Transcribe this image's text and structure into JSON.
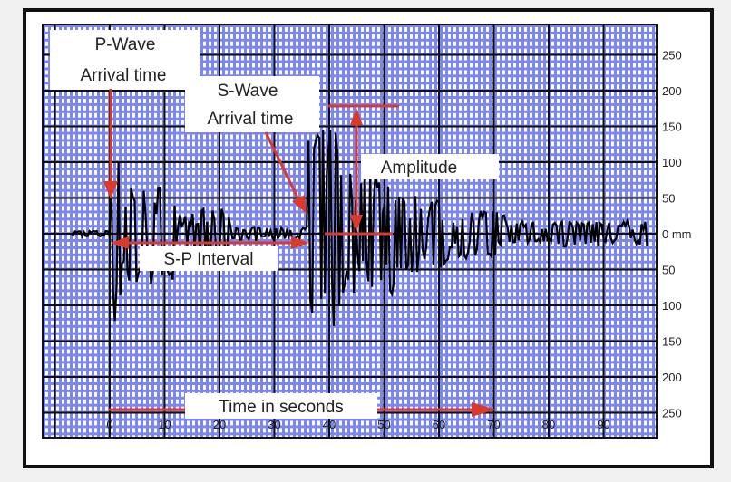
{
  "annotations": {
    "p_wave_line1": "P-Wave",
    "p_wave_line2": "Arrival time",
    "s_wave_line1": "S-Wave",
    "s_wave_line2": "Arrival time",
    "amplitude": "Amplitude",
    "sp_interval": "S-P Interval",
    "time_axis": "Time in seconds"
  },
  "x_ticks": [
    "0",
    "10",
    "20",
    "30",
    "40",
    "50",
    "60",
    "70",
    "80",
    "90"
  ],
  "y_ticks": [
    "250",
    "200",
    "150",
    "100",
    "50",
    "0 mm",
    "50",
    "100",
    "150",
    "200",
    "250"
  ],
  "colors": {
    "grid_minor": "#6f7cf2",
    "grid_major": "#111111",
    "arrow": "#d93a2b",
    "trace": "#000000"
  }
}
